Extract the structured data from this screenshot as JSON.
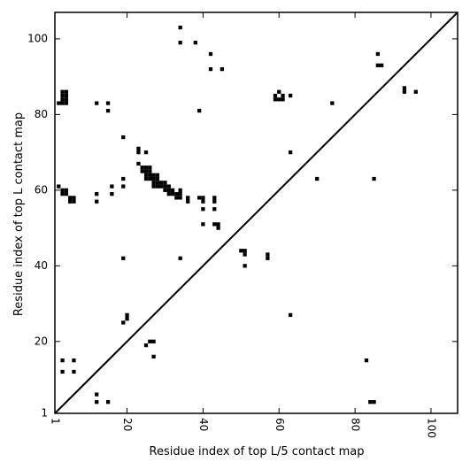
{
  "chart_data": {
    "type": "heatmap",
    "title": "",
    "xlabel": "Residue index of top L/5 contact map",
    "ylabel": "Residue index of top L contact map",
    "xlim": [
      1,
      107
    ],
    "ylim": [
      1,
      107
    ],
    "x_ticks": [
      1,
      20,
      40,
      60,
      80,
      100
    ],
    "y_ticks": [
      1,
      20,
      40,
      60,
      80,
      100
    ],
    "x_tick_labels": [
      "1",
      "20",
      "40",
      "60",
      "80",
      "100"
    ],
    "y_tick_labels": [
      "1",
      "20",
      "40",
      "60",
      "80",
      "100"
    ],
    "x_tick_rotation": -90,
    "diagonal": true,
    "cell_color": "#000000",
    "upper_contacts": [
      [
        3,
        86
      ],
      [
        4,
        86
      ],
      [
        3,
        85
      ],
      [
        4,
        85
      ],
      [
        3,
        84
      ],
      [
        4,
        84
      ],
      [
        2,
        83
      ],
      [
        3,
        83
      ],
      [
        4,
        83
      ],
      [
        2,
        61
      ],
      [
        3,
        60
      ],
      [
        4,
        60
      ],
      [
        3,
        59
      ],
      [
        4,
        59
      ],
      [
        5,
        58
      ],
      [
        6,
        58
      ],
      [
        5,
        57
      ],
      [
        6,
        57
      ],
      [
        12,
        83
      ],
      [
        15,
        83
      ],
      [
        15,
        81
      ],
      [
        12,
        59
      ],
      [
        12,
        57
      ],
      [
        16,
        61
      ],
      [
        16,
        59
      ],
      [
        19,
        74
      ],
      [
        19,
        63
      ],
      [
        19,
        61
      ],
      [
        19,
        42
      ],
      [
        19,
        25
      ],
      [
        20,
        27
      ],
      [
        20,
        26
      ],
      [
        23,
        71
      ],
      [
        23,
        70
      ],
      [
        25,
        70
      ],
      [
        23,
        67
      ],
      [
        24,
        66
      ],
      [
        25,
        66
      ],
      [
        26,
        66
      ],
      [
        24,
        65
      ],
      [
        25,
        65
      ],
      [
        26,
        65
      ],
      [
        25,
        64
      ],
      [
        26,
        64
      ],
      [
        27,
        64
      ],
      [
        28,
        64
      ],
      [
        25,
        63
      ],
      [
        26,
        63
      ],
      [
        27,
        63
      ],
      [
        28,
        63
      ],
      [
        27,
        62
      ],
      [
        28,
        62
      ],
      [
        29,
        62
      ],
      [
        30,
        62
      ],
      [
        27,
        61
      ],
      [
        28,
        61
      ],
      [
        29,
        61
      ],
      [
        30,
        61
      ],
      [
        31,
        61
      ],
      [
        30,
        60
      ],
      [
        31,
        60
      ],
      [
        32,
        60
      ],
      [
        34,
        60
      ],
      [
        31,
        59
      ],
      [
        32,
        59
      ],
      [
        33,
        59
      ],
      [
        34,
        59
      ],
      [
        33,
        58
      ],
      [
        34,
        58
      ],
      [
        36,
        58
      ],
      [
        39,
        58
      ],
      [
        40,
        58
      ],
      [
        43,
        58
      ],
      [
        36,
        57
      ],
      [
        40,
        57
      ],
      [
        43,
        57
      ],
      [
        40,
        55
      ],
      [
        43,
        55
      ],
      [
        40,
        51
      ],
      [
        43,
        51
      ],
      [
        44,
        51
      ],
      [
        44,
        50
      ],
      [
        34,
        103
      ],
      [
        34,
        99
      ],
      [
        38,
        99
      ],
      [
        42,
        96
      ],
      [
        42,
        92
      ],
      [
        45,
        92
      ],
      [
        39,
        81
      ],
      [
        50,
        44
      ],
      [
        51,
        44
      ],
      [
        51,
        43
      ],
      [
        51,
        40
      ],
      [
        57,
        43
      ],
      [
        57,
        42
      ],
      [
        60,
        86
      ],
      [
        59,
        85
      ],
      [
        61,
        85
      ],
      [
        63,
        85
      ],
      [
        59,
        84
      ],
      [
        60,
        84
      ],
      [
        61,
        84
      ],
      [
        63,
        70
      ],
      [
        63,
        27
      ],
      [
        70,
        63
      ],
      [
        74,
        83
      ],
      [
        85,
        63
      ],
      [
        86,
        96
      ],
      [
        86,
        93
      ],
      [
        87,
        93
      ],
      [
        93,
        87
      ],
      [
        93,
        86
      ],
      [
        96,
        86
      ]
    ],
    "lower_contacts": [
      [
        3,
        15
      ],
      [
        6,
        15
      ],
      [
        3,
        12
      ],
      [
        6,
        12
      ],
      [
        12,
        6
      ],
      [
        12,
        4
      ],
      [
        15,
        4
      ],
      [
        25,
        19
      ],
      [
        26,
        20
      ],
      [
        27,
        20
      ],
      [
        27,
        16
      ],
      [
        34,
        42
      ],
      [
        83,
        15
      ],
      [
        84,
        4
      ],
      [
        85,
        4
      ]
    ]
  }
}
